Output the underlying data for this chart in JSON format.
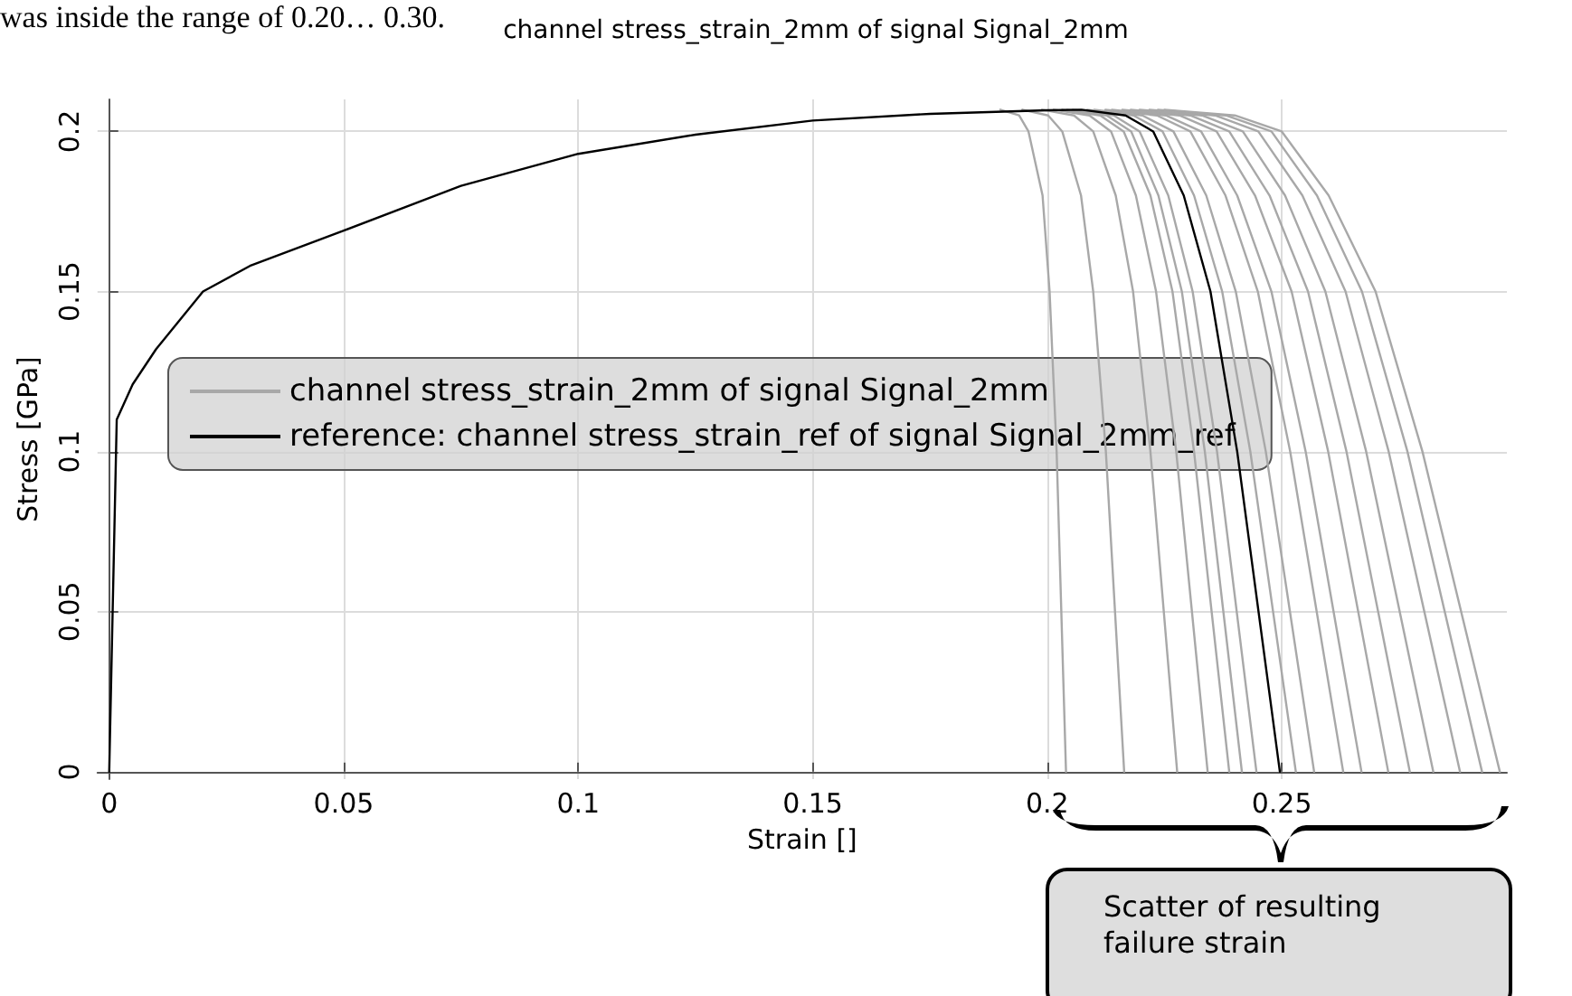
{
  "chart_data": {
    "type": "line",
    "title": "channel stress_strain_2mm of signal Signal_2mm",
    "xlabel": "Strain []",
    "ylabel": "Stress [GPa]",
    "xlim": [
      -0.0025,
      0.298
    ],
    "ylim": [
      -0.0023,
      0.21
    ],
    "xticks": [
      0,
      0.05,
      0.1,
      0.15,
      0.2,
      0.25
    ],
    "yticks": [
      0,
      0.05,
      0.1,
      0.15,
      0.2
    ],
    "grid": true,
    "legend": "left",
    "marker": "none",
    "line_style": "solid",
    "annotations": [
      "was inside the range of 0.20… 0.30.",
      "Scatter of resulting failure strain"
    ],
    "series": [
      {
        "name": "channel stress_strain_2mm of signal Signal_2mm",
        "color": "#a8a8a8",
        "x": [
          0.19,
          0.194,
          0.196,
          0.199,
          0.2005,
          0.202,
          0.204
        ],
        "values": [
          0.2068,
          0.205,
          0.2,
          0.18,
          0.15,
          0.1,
          0
        ]
      },
      {
        "color": "#a8a8a8",
        "x": [
          0.1947,
          0.2002,
          0.2032,
          0.2072,
          0.2098,
          0.2125,
          0.2164
        ],
        "values": [
          0.2068,
          0.205,
          0.2,
          0.18,
          0.15,
          0.1,
          0
        ]
      },
      {
        "color": "#a8a8a8",
        "x": [
          0.1989,
          0.2057,
          0.2098,
          0.2146,
          0.2183,
          0.222,
          0.2277
        ],
        "values": [
          0.2068,
          0.205,
          0.2,
          0.18,
          0.15,
          0.1,
          0
        ]
      },
      {
        "color": "#a8a8a8",
        "x": [
          0.2014,
          0.209,
          0.2136,
          0.2189,
          0.2232,
          0.2275,
          0.2342
        ],
        "values": [
          0.2068,
          0.205,
          0.2,
          0.18,
          0.15,
          0.1,
          0
        ]
      },
      {
        "color": "#a8a8a8",
        "x": [
          0.2032,
          0.2113,
          0.2163,
          0.222,
          0.2267,
          0.2313,
          0.2388
        ],
        "values": [
          0.2068,
          0.205,
          0.2,
          0.18,
          0.15,
          0.1,
          0
        ]
      },
      {
        "color": "#a8a8a8",
        "x": [
          0.2042,
          0.2127,
          0.2179,
          0.2237,
          0.2287,
          0.2336,
          0.2415
        ],
        "values": [
          0.2068,
          0.205,
          0.2,
          0.18,
          0.15,
          0.1,
          0
        ]
      },
      {
        "color": "#a8a8a8",
        "x": [
          0.2054,
          0.2142,
          0.2197,
          0.2258,
          0.231,
          0.2362,
          0.2446
        ],
        "values": [
          0.2068,
          0.205,
          0.2,
          0.18,
          0.15,
          0.1,
          0
        ]
      },
      {
        "color": "#a8a8a8",
        "x": [
          0.2085,
          0.2184,
          0.2246,
          0.2313,
          0.2373,
          0.2433,
          0.253
        ],
        "values": [
          0.2068,
          0.205,
          0.2,
          0.18,
          0.15,
          0.1,
          0
        ]
      },
      {
        "color": "#a8a8a8",
        "x": [
          0.21,
          0.2203,
          0.2269,
          0.2339,
          0.2402,
          0.2466,
          0.2569
        ],
        "values": [
          0.2068,
          0.205,
          0.2,
          0.18,
          0.15,
          0.1,
          0
        ]
      },
      {
        "color": "#a8a8a8",
        "x": [
          0.2124,
          0.2234,
          0.2305,
          0.238,
          0.2449,
          0.2518,
          0.2631
        ],
        "values": [
          0.2068,
          0.205,
          0.2,
          0.18,
          0.15,
          0.1,
          0
        ]
      },
      {
        "color": "#a8a8a8",
        "x": [
          0.2138,
          0.2253,
          0.2328,
          0.2405,
          0.2478,
          0.2551,
          0.267
        ],
        "values": [
          0.2068,
          0.205,
          0.2,
          0.18,
          0.15,
          0.1,
          0
        ]
      },
      {
        "color": "#a8a8a8",
        "x": [
          0.216,
          0.2282,
          0.2361,
          0.2443,
          0.2521,
          0.2599,
          0.2727
        ],
        "values": [
          0.2068,
          0.205,
          0.2,
          0.18,
          0.15,
          0.1,
          0
        ]
      },
      {
        "color": "#a8a8a8",
        "x": [
          0.2178,
          0.2305,
          0.2388,
          0.2474,
          0.2556,
          0.2638,
          0.2773
        ],
        "values": [
          0.2068,
          0.205,
          0.2,
          0.18,
          0.15,
          0.1,
          0
        ]
      },
      {
        "color": "#a8a8a8",
        "x": [
          0.2197,
          0.233,
          0.2417,
          0.2507,
          0.2593,
          0.268,
          0.2823
        ],
        "values": [
          0.2068,
          0.205,
          0.2,
          0.18,
          0.15,
          0.1,
          0
        ]
      },
      {
        "color": "#a8a8a8",
        "x": [
          0.2218,
          0.2358,
          0.245,
          0.2544,
          0.2636,
          0.2728,
          0.288
        ],
        "values": [
          0.2068,
          0.205,
          0.2,
          0.18,
          0.15,
          0.1,
          0
        ]
      },
      {
        "color": "#a8a8a8",
        "x": [
          0.2236,
          0.2381,
          0.2478,
          0.2575,
          0.2671,
          0.2768,
          0.2927
        ],
        "values": [
          0.2068,
          0.205,
          0.2,
          0.18,
          0.15,
          0.1,
          0
        ]
      },
      {
        "color": "#a8a8a8",
        "x": [
          0.225,
          0.24,
          0.25,
          0.26,
          0.27,
          0.28,
          0.2965
        ],
        "values": [
          0.2068,
          0.205,
          0.2,
          0.18,
          0.15,
          0.1,
          0
        ]
      },
      {
        "name": "reference: channel stress_strain_ref of signal Signal_2mm_ref",
        "color": "#000000",
        "x": [
          0,
          0.0016,
          0.005,
          0.01,
          0.02,
          0.03,
          0.05,
          0.075,
          0.1,
          0.125,
          0.15,
          0.175,
          0.2,
          0.2073,
          0.2167,
          0.2226,
          0.2291,
          0.2348,
          0.2405,
          0.2496
        ],
        "values": [
          0,
          0.11,
          0.121,
          0.132,
          0.15,
          0.158,
          0.169,
          0.183,
          0.193,
          0.199,
          0.2034,
          0.2055,
          0.2066,
          0.2068,
          0.205,
          0.2,
          0.18,
          0.15,
          0.1,
          0
        ]
      }
    ]
  }
}
